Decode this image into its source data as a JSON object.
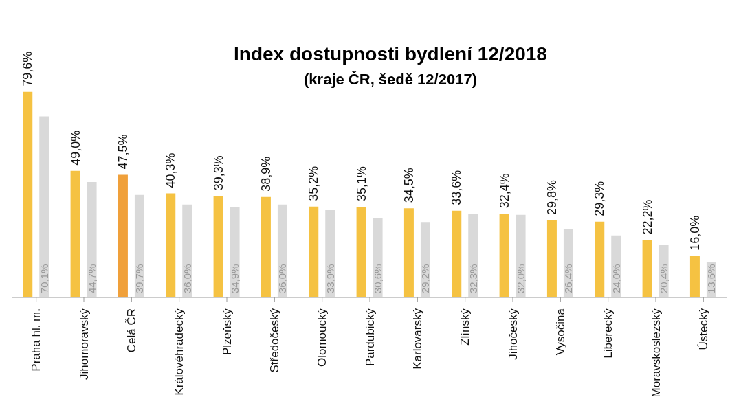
{
  "chart_data": {
    "type": "bar",
    "title": "Index dostupnosti bydlení 12/2018",
    "subtitle": "(kraje ČR, šedě 12/2017)",
    "categories": [
      "Praha hl. m.",
      "Jihomoravský",
      "Celá ČR",
      "Královéhradecký",
      "Plzeňský",
      "Středočeský",
      "Olomoucký",
      "Pardubický",
      "Karlovarský",
      "Zlínský",
      "Jihočeský",
      "Vysočina",
      "Liberecký",
      "Moravskoslezský",
      "Ústecký"
    ],
    "series": [
      {
        "colors": [
          "#f5c242",
          "#f5c242",
          "#f0a03a",
          "#f5c242",
          "#f5c242",
          "#f5c242",
          "#f5c242",
          "#f5c242",
          "#f5c242",
          "#f5c242",
          "#f5c242",
          "#f5c242",
          "#f5c242",
          "#f5c242",
          "#f5c242"
        ],
        "values": [
          79.6,
          49.0,
          47.5,
          40.3,
          39.3,
          38.9,
          35.2,
          35.1,
          34.5,
          33.6,
          32.4,
          29.8,
          29.3,
          22.2,
          16.0
        ],
        "value_labels": [
          "79,6%",
          "49,0%",
          "47,5%",
          "40,3%",
          "39,3%",
          "38,9%",
          "35,2%",
          "35,1%",
          "34,5%",
          "33,6%",
          "32,4%",
          "29,8%",
          "29,3%",
          "22,2%",
          "16,0%"
        ]
      },
      {
        "color": "#d9d9d9",
        "values": [
          70.1,
          44.7,
          39.7,
          36.0,
          34.9,
          36.0,
          33.9,
          30.6,
          29.2,
          32.3,
          32.0,
          26.4,
          24.0,
          20.4,
          13.6
        ],
        "value_labels": [
          "70,1%",
          "44,7%",
          "39,7%",
          "36,0%",
          "34,9%",
          "36,0%",
          "33,9%",
          "30,6%",
          "29,2%",
          "32,3%",
          "32,0%",
          "26,4%",
          "24,0%",
          "20,4%",
          "13,6%"
        ]
      }
    ]
  }
}
